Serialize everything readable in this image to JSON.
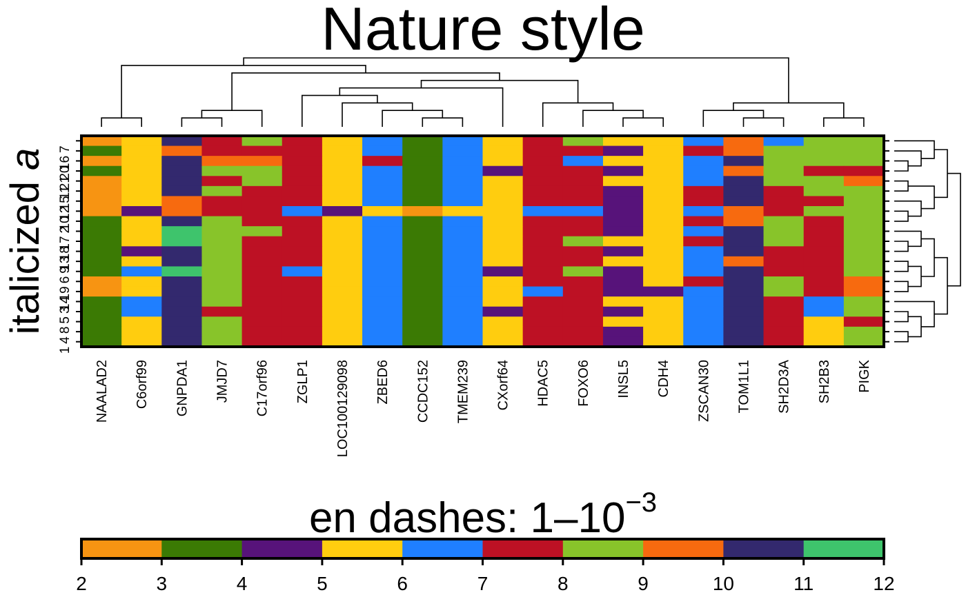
{
  "chart_data": {
    "type": "heatmap",
    "title": "Nature style",
    "ylabel": {
      "prefix": "italicized ",
      "italic": "a"
    },
    "columns": [
      "NAALAD2",
      "C6orf99",
      "GNPDA1",
      "JMJD7",
      "C17orf96",
      "ZGLP1",
      "LOC100129098",
      "ZBED6",
      "CCDC152",
      "TMEM239",
      "CXorf64",
      "HDAC5",
      "FOXO6",
      "INSL5",
      "CDH4",
      "ZSCAN30",
      "TOM1L1",
      "SH2D3A",
      "SH2B3",
      "PIGK"
    ],
    "rows": [
      "7",
      "16",
      "20",
      "21",
      "11",
      "15",
      "12",
      "10",
      "2",
      "17",
      "18",
      "13",
      "9",
      "6",
      "19",
      "14",
      "3",
      "5",
      "8",
      "4",
      "1"
    ],
    "values": [
      [
        2.5,
        5.5,
        10.5,
        7.5,
        8.5,
        7.5,
        5.5,
        6.5,
        3.5,
        6.5,
        5.5,
        7.5,
        8.5,
        5.5,
        5.5,
        6.5,
        9.5,
        6.5,
        8.5,
        8.5
      ],
      [
        3.5,
        5.5,
        9.5,
        7.5,
        7.5,
        7.5,
        5.5,
        6.5,
        3.5,
        6.5,
        5.5,
        7.5,
        7.5,
        4.5,
        5.5,
        7.5,
        9.5,
        8.5,
        8.5,
        8.5
      ],
      [
        2.5,
        5.5,
        10.5,
        9.5,
        9.5,
        7.5,
        5.5,
        7.5,
        3.5,
        6.5,
        5.5,
        7.5,
        6.5,
        5.5,
        5.5,
        6.5,
        10.5,
        8.5,
        8.5,
        8.5
      ],
      [
        3.5,
        5.5,
        10.5,
        8.5,
        8.5,
        7.5,
        5.5,
        6.5,
        3.5,
        6.5,
        4.5,
        7.5,
        7.5,
        4.5,
        5.5,
        6.5,
        9.5,
        8.5,
        7.5,
        7.5
      ],
      [
        2.5,
        5.5,
        10.5,
        7.5,
        8.5,
        7.5,
        5.5,
        6.5,
        3.5,
        6.5,
        5.5,
        7.5,
        7.5,
        5.5,
        5.5,
        6.5,
        10.5,
        8.5,
        8.5,
        9.5
      ],
      [
        2.5,
        5.5,
        10.5,
        8.5,
        7.5,
        7.5,
        5.5,
        6.5,
        3.5,
        6.5,
        5.5,
        7.5,
        7.5,
        4.5,
        5.5,
        7.5,
        10.5,
        7.5,
        8.5,
        8.5
      ],
      [
        2.5,
        5.5,
        9.5,
        7.5,
        7.5,
        7.5,
        5.5,
        6.5,
        3.5,
        6.5,
        5.5,
        7.5,
        7.5,
        4.5,
        5.5,
        7.5,
        10.5,
        7.5,
        7.5,
        8.5
      ],
      [
        2.5,
        4.5,
        9.5,
        7.5,
        7.5,
        6.5,
        4.5,
        5.5,
        2.5,
        5.5,
        5.5,
        6.5,
        6.5,
        4.5,
        5.5,
        6.5,
        9.5,
        7.5,
        8.5,
        8.5
      ],
      [
        3.5,
        5.5,
        10.5,
        8.5,
        7.5,
        7.5,
        5.5,
        6.5,
        3.5,
        6.5,
        5.5,
        7.5,
        7.5,
        4.5,
        5.5,
        7.5,
        9.5,
        8.5,
        7.5,
        8.5
      ],
      [
        3.5,
        5.5,
        11.5,
        8.5,
        8.5,
        7.5,
        5.5,
        6.5,
        3.5,
        6.5,
        5.5,
        7.5,
        7.5,
        4.5,
        5.5,
        6.5,
        10.5,
        8.5,
        7.5,
        8.5
      ],
      [
        3.5,
        5.5,
        11.5,
        8.5,
        7.5,
        7.5,
        5.5,
        6.5,
        3.5,
        6.5,
        5.5,
        7.5,
        8.5,
        5.5,
        5.5,
        7.5,
        10.5,
        8.5,
        7.5,
        8.5
      ],
      [
        3.5,
        4.5,
        10.5,
        8.5,
        7.5,
        7.5,
        5.5,
        6.5,
        3.5,
        6.5,
        5.5,
        7.5,
        7.5,
        4.5,
        5.5,
        6.5,
        10.5,
        7.5,
        7.5,
        8.5
      ],
      [
        3.5,
        5.5,
        10.5,
        8.5,
        7.5,
        7.5,
        5.5,
        6.5,
        3.5,
        6.5,
        5.5,
        7.5,
        7.5,
        5.5,
        5.5,
        6.5,
        9.5,
        7.5,
        7.5,
        8.5
      ],
      [
        3.5,
        6.5,
        11.5,
        8.5,
        7.5,
        6.5,
        5.5,
        6.5,
        3.5,
        6.5,
        4.5,
        7.5,
        8.5,
        4.5,
        5.5,
        6.5,
        10.5,
        7.5,
        7.5,
        8.5
      ],
      [
        2.5,
        5.5,
        10.5,
        8.5,
        7.5,
        7.5,
        5.5,
        6.5,
        3.5,
        6.5,
        5.5,
        7.5,
        7.5,
        4.5,
        5.5,
        7.5,
        10.5,
        8.5,
        7.5,
        9.5
      ],
      [
        2.5,
        5.5,
        10.5,
        8.5,
        7.5,
        7.5,
        5.5,
        6.5,
        3.5,
        6.5,
        5.5,
        6.5,
        7.5,
        4.5,
        4.5,
        6.5,
        10.5,
        8.5,
        7.5,
        9.5
      ],
      [
        3.5,
        6.5,
        10.5,
        8.5,
        7.5,
        7.5,
        5.5,
        6.5,
        3.5,
        6.5,
        5.5,
        7.5,
        7.5,
        5.5,
        5.5,
        6.5,
        10.5,
        7.5,
        6.5,
        8.5
      ],
      [
        3.5,
        6.5,
        10.5,
        7.5,
        7.5,
        7.5,
        5.5,
        6.5,
        3.5,
        6.5,
        4.5,
        7.5,
        7.5,
        4.5,
        5.5,
        6.5,
        10.5,
        7.5,
        6.5,
        8.5
      ],
      [
        3.5,
        5.5,
        10.5,
        8.5,
        7.5,
        7.5,
        5.5,
        6.5,
        3.5,
        6.5,
        5.5,
        7.5,
        7.5,
        5.5,
        5.5,
        6.5,
        10.5,
        7.5,
        5.5,
        7.5
      ],
      [
        3.5,
        5.5,
        10.5,
        8.5,
        7.5,
        7.5,
        5.5,
        6.5,
        3.5,
        6.5,
        5.5,
        7.5,
        7.5,
        4.5,
        5.5,
        6.5,
        10.5,
        7.5,
        5.5,
        8.5
      ],
      [
        3.5,
        5.5,
        10.5,
        8.5,
        7.5,
        7.5,
        5.5,
        6.5,
        3.5,
        6.5,
        5.5,
        7.5,
        7.5,
        4.5,
        5.5,
        6.5,
        10.5,
        7.5,
        5.5,
        8.5
      ]
    ],
    "colorkey": {
      "title": {
        "base": "en dashes: 1–10",
        "sup": "−3"
      },
      "breaks": [
        2,
        3,
        4,
        5,
        6,
        7,
        8,
        9,
        10,
        11,
        12
      ],
      "colors": [
        "#F79412",
        "#3B7A04",
        "#57137A",
        "#FFCD0F",
        "#1F7FFF",
        "#BD1124",
        "#88C42A",
        "#F76A0F",
        "#33296E",
        "#3EC46C"
      ]
    },
    "column_dendrogram": true,
    "row_dendrogram": true,
    "grid": false
  }
}
